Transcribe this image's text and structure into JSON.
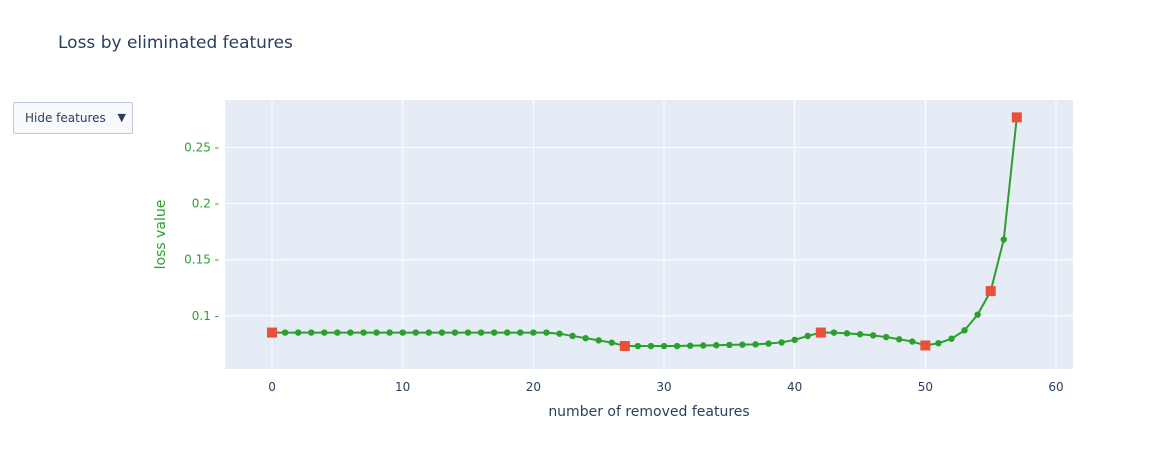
{
  "title": "Loss by eliminated features",
  "dropdown": {
    "label": "Hide features"
  },
  "chart_data": {
    "type": "line",
    "title": "Loss by eliminated features",
    "xlabel": "number of removed features",
    "ylabel": "loss value",
    "xlim": [
      -3.6,
      61.3
    ],
    "ylim": [
      0.0525,
      0.2925
    ],
    "x_ticks": [
      0,
      10,
      20,
      30,
      40,
      50,
      60
    ],
    "y_ticks": [
      0.1,
      0.15,
      0.2,
      0.25
    ],
    "x_tick_labels": [
      "0",
      "10",
      "20",
      "30",
      "40",
      "50",
      "60"
    ],
    "y_tick_labels": [
      "0.1",
      "0.15",
      "0.2",
      "0.25"
    ],
    "grid": true,
    "colors": {
      "line": "#2ca02c",
      "marker": "#e8503a",
      "plot_bg": "#e5ecf6",
      "text": "#2a3f5f",
      "ylabel": "#2ca02c"
    },
    "series": [
      {
        "x": [
          0,
          1,
          2,
          3,
          4,
          5,
          6,
          7,
          8,
          9,
          10,
          11,
          12,
          13,
          14,
          15,
          16,
          17,
          18,
          19,
          20,
          21,
          22,
          23,
          24,
          25,
          26,
          27,
          28,
          29,
          30,
          31,
          32,
          33,
          34,
          35,
          36,
          37,
          38,
          39,
          40,
          41,
          42,
          43,
          44,
          45,
          46,
          47,
          48,
          49,
          50,
          51,
          52,
          53,
          54,
          55,
          56,
          57
        ],
        "y": [
          0.085,
          0.085,
          0.085,
          0.085,
          0.085,
          0.085,
          0.085,
          0.085,
          0.085,
          0.085,
          0.085,
          0.085,
          0.085,
          0.085,
          0.085,
          0.085,
          0.085,
          0.085,
          0.085,
          0.085,
          0.085,
          0.085,
          0.084,
          0.082,
          0.08,
          0.078,
          0.076,
          0.073,
          0.073,
          0.073,
          0.073,
          0.073,
          0.0733,
          0.0735,
          0.0737,
          0.074,
          0.0742,
          0.0745,
          0.0752,
          0.0762,
          0.0785,
          0.082,
          0.085,
          0.085,
          0.0843,
          0.0835,
          0.0825,
          0.081,
          0.079,
          0.077,
          0.0735,
          0.0755,
          0.0795,
          0.087,
          0.101,
          0.122,
          0.168,
          0.277
        ]
      },
      {
        "x": [
          0,
          27,
          42,
          50,
          55,
          57
        ],
        "y": [
          0.085,
          0.073,
          0.085,
          0.0735,
          0.122,
          0.277
        ]
      }
    ]
  }
}
